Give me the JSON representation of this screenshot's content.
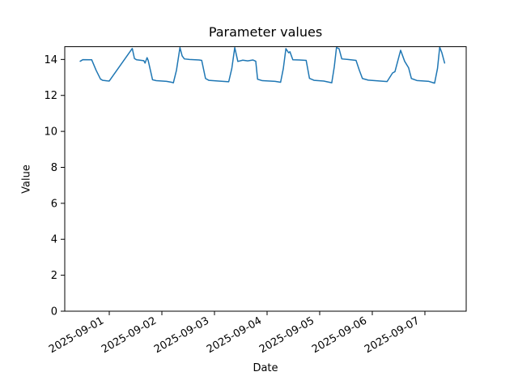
{
  "chart_data": {
    "type": "line",
    "title": "Parameter values",
    "xlabel": "Date",
    "ylabel": "Value",
    "series_name": "Parameter values",
    "series_color": "#1f77b4",
    "grid": false,
    "legend": "none",
    "x_epoch": "2025-09-01 00:00",
    "xlim_days_from_epoch": [
      -0.846,
      6.785
    ],
    "ylim": [
      0,
      14.71
    ],
    "y_ticks": [
      0,
      2,
      4,
      6,
      8,
      10,
      12,
      14
    ],
    "x_tick_days_from_epoch": [
      0,
      1,
      2,
      3,
      4,
      5,
      6
    ],
    "x_tick_labels": [
      "2025-09-01",
      "2025-09-02",
      "2025-09-03",
      "2025-09-04",
      "2025-09-05",
      "2025-09-06",
      "2025-09-07"
    ],
    "points": [
      [
        "2025-08-31 10:45",
        13.9
      ],
      [
        "2025-08-31 12:00",
        13.99
      ],
      [
        "2025-08-31 16:00",
        13.98
      ],
      [
        "2025-08-31 18:00",
        13.4
      ],
      [
        "2025-08-31 20:00",
        12.91
      ],
      [
        "2025-08-31 21:00",
        12.84
      ],
      [
        "2025-08-31 23:00",
        12.81
      ],
      [
        "2025-09-01 00:00",
        12.8
      ],
      [
        "2025-09-01 10:30",
        14.61
      ],
      [
        "2025-09-01 11:30",
        14.05
      ],
      [
        "2025-09-01 12:30",
        13.98
      ],
      [
        "2025-09-01 15:45",
        13.93
      ],
      [
        "2025-09-01 16:20",
        13.8
      ],
      [
        "2025-09-01 17:15",
        14.1
      ],
      [
        "2025-09-01 17:45",
        13.95
      ],
      [
        "2025-09-01 19:45",
        12.87
      ],
      [
        "2025-09-01 21:25",
        12.82
      ],
      [
        "2025-09-02 02:10",
        12.78
      ],
      [
        "2025-09-02 04:25",
        12.73
      ],
      [
        "2025-09-02 05:15",
        12.7
      ],
      [
        "2025-09-02 06:40",
        13.4
      ],
      [
        "2025-09-02 08:15",
        14.66
      ],
      [
        "2025-09-02 09:15",
        14.2
      ],
      [
        "2025-09-02 10:15",
        14.03
      ],
      [
        "2025-09-02 12:35",
        14.0
      ],
      [
        "2025-09-02 17:00",
        13.97
      ],
      [
        "2025-09-02 18:10",
        13.95
      ],
      [
        "2025-09-02 19:55",
        12.94
      ],
      [
        "2025-09-02 21:25",
        12.84
      ],
      [
        "2025-09-03 01:50",
        12.8
      ],
      [
        "2025-09-03 06:30",
        12.76
      ],
      [
        "2025-09-03 07:55",
        13.5
      ],
      [
        "2025-09-03 09:15",
        14.66
      ],
      [
        "2025-09-03 10:40",
        13.89
      ],
      [
        "2025-09-03 12:55",
        13.96
      ],
      [
        "2025-09-03 15:10",
        13.92
      ],
      [
        "2025-09-03 17:35",
        13.97
      ],
      [
        "2025-09-03 18:50",
        13.9
      ],
      [
        "2025-09-03 19:40",
        12.9
      ],
      [
        "2025-09-03 21:50",
        12.82
      ],
      [
        "2025-09-04 03:40",
        12.78
      ],
      [
        "2025-09-04 06:10",
        12.73
      ],
      [
        "2025-09-04 07:25",
        13.5
      ],
      [
        "2025-09-04 08:35",
        14.6
      ],
      [
        "2025-09-04 09:50",
        14.37
      ],
      [
        "2025-09-04 10:25",
        14.43
      ],
      [
        "2025-09-04 11:45",
        13.98
      ],
      [
        "2025-09-04 14:45",
        13.97
      ],
      [
        "2025-09-04 17:50",
        13.95
      ],
      [
        "2025-09-04 19:20",
        12.95
      ],
      [
        "2025-09-04 21:25",
        12.84
      ],
      [
        "2025-09-05 01:50",
        12.8
      ],
      [
        "2025-09-05 04:50",
        12.72
      ],
      [
        "2025-09-05 05:30",
        12.7
      ],
      [
        "2025-09-05 06:40",
        13.6
      ],
      [
        "2025-09-05 07:40",
        14.66
      ],
      [
        "2025-09-05 08:50",
        14.6
      ],
      [
        "2025-09-05 10:05",
        14.03
      ],
      [
        "2025-09-05 12:55",
        14.0
      ],
      [
        "2025-09-05 16:35",
        13.95
      ],
      [
        "2025-09-05 18:05",
        13.4
      ],
      [
        "2025-09-05 19:30",
        12.94
      ],
      [
        "2025-09-05 22:10",
        12.85
      ],
      [
        "2025-09-06 03:40",
        12.8
      ],
      [
        "2025-09-06 06:45",
        12.77
      ],
      [
        "2025-09-06 09:15",
        13.25
      ],
      [
        "2025-09-06 10:20",
        13.32
      ],
      [
        "2025-09-06 12:55",
        14.51
      ],
      [
        "2025-09-06 14:45",
        13.9
      ],
      [
        "2025-09-06 16:35",
        13.53
      ],
      [
        "2025-09-06 17:50",
        12.94
      ],
      [
        "2025-09-06 20:20",
        12.83
      ],
      [
        "2025-09-07 01:50",
        12.78
      ],
      [
        "2025-09-07 03:40",
        12.71
      ],
      [
        "2025-09-07 04:25",
        12.68
      ],
      [
        "2025-09-07 05:45",
        13.5
      ],
      [
        "2025-09-07 06:45",
        14.68
      ],
      [
        "2025-09-07 07:40",
        14.4
      ],
      [
        "2025-09-07 09:00",
        13.8
      ]
    ]
  }
}
